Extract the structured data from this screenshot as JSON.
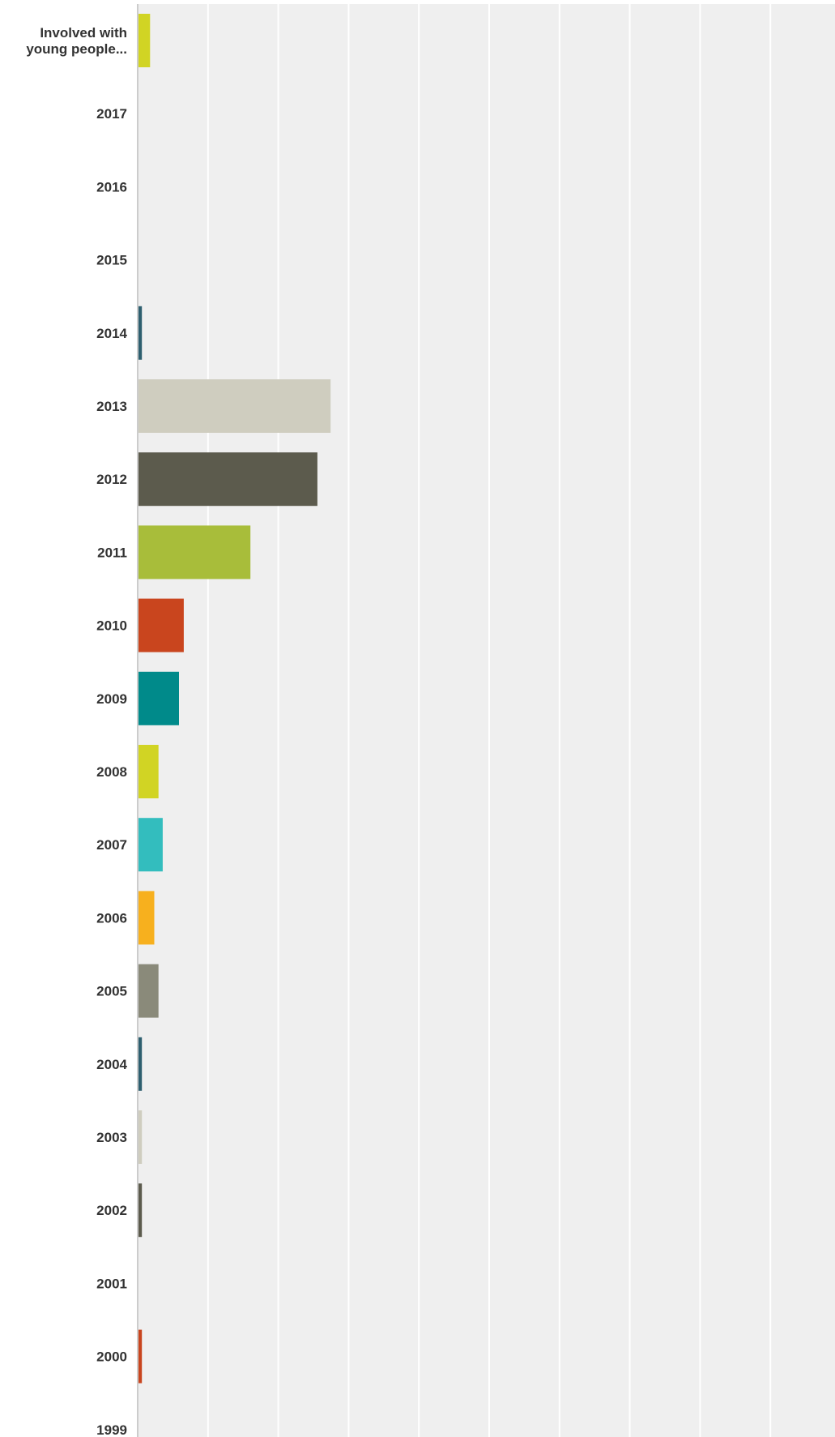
{
  "chart_data": {
    "type": "bar",
    "orientation": "horizontal",
    "title": "",
    "xlabel": "",
    "ylabel": "",
    "grid": true,
    "xlim": [
      0,
      0.25
    ],
    "categories": [
      [
        "Involved with",
        "young people..."
      ],
      "2017",
      "2016",
      "2015",
      "2014",
      "2013",
      "2012",
      "2011",
      "2010",
      "2009",
      "2008",
      "2007",
      "2006",
      "2005",
      "2004",
      "2003",
      "2002",
      "2001",
      "2000",
      "1999"
    ],
    "values": [
      0.0044,
      0,
      0,
      0,
      0.0015,
      0.0686,
      0.0639,
      0.0401,
      0.0164,
      0.0147,
      0.0074,
      0.0089,
      0.0059,
      0.0074,
      0.0015,
      0.0015,
      0.0015,
      0,
      0.0015,
      0
    ],
    "colors": [
      "#d1d424",
      "#d1d424",
      "#d1d424",
      "#d1d424",
      "#2e5f6f",
      "#cfcdbf",
      "#5c5b4d",
      "#a8bd3a",
      "#c9451e",
      "#008a8a",
      "#d1d424",
      "#33bdbe",
      "#f7b01e",
      "#8a8a7a",
      "#2e5f6f",
      "#cfcdbf",
      "#5c5b4d",
      "#a8bd3a",
      "#c9451e",
      "#008a8a"
    ]
  },
  "style": {
    "plot_background": "#efefef",
    "gridline_color": "#ffffff",
    "axis_color": "#cccccc",
    "label_color": "#333333"
  }
}
